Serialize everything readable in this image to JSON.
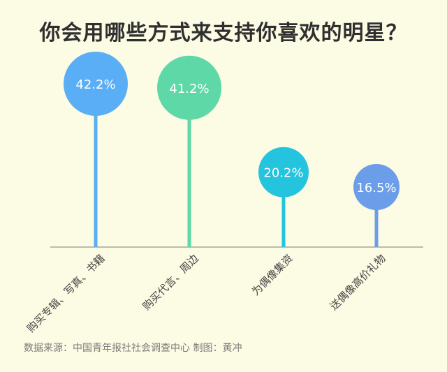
{
  "title": "你会用哪些方式来支持你喜欢的明星？",
  "source": "数据来源：中国青年报社社会调查中心  制图：黄冲",
  "chart_data": {
    "type": "bar",
    "style": "lollipop",
    "title": "你会用哪些方式来支持你喜欢的明星？",
    "categories": [
      "购买专辑、写真、书籍",
      "购买代言、周边",
      "为偶像集资",
      "送偶像高价礼物"
    ],
    "values": [
      42.2,
      41.2,
      20.2,
      16.5
    ],
    "value_labels": [
      "42.2%",
      "41.2%",
      "20.2%",
      "16.5%"
    ],
    "unit": "%",
    "ylim": [
      0,
      50
    ],
    "grid": false,
    "colors": [
      "#5aaef5",
      "#5fd8a8",
      "#24c3de",
      "#6b9de8"
    ]
  }
}
